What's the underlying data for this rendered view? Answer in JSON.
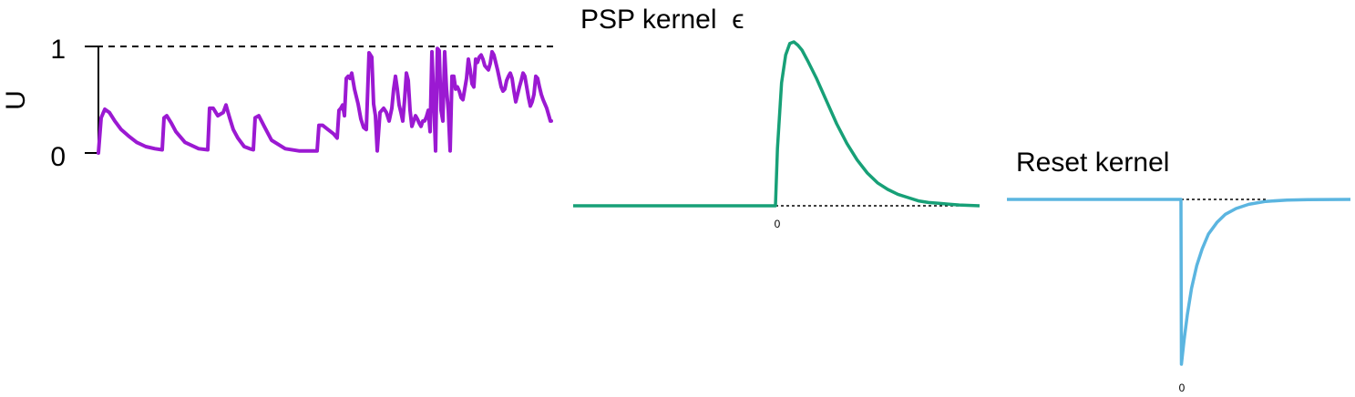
{
  "chart_data": [
    {
      "type": "line",
      "title": "",
      "xlabel": "",
      "ylabel": "U",
      "ylim": [
        0,
        1
      ],
      "yticks": [
        "0",
        "1"
      ],
      "threshold": 1,
      "threshold_style": "dashed",
      "colors": {
        "series": "#9B19D2",
        "axis": "#000000"
      },
      "series": [
        {
          "x": [
            0,
            3,
            7,
            12,
            18,
            25,
            33,
            42,
            52,
            62,
            70,
            72,
            75,
            80,
            85,
            95,
            110,
            120,
            122,
            126,
            131,
            137,
            140,
            141,
            144,
            148,
            153,
            160,
            166,
            170,
            172,
            176,
            182,
            190,
            205,
            220,
            240,
            242,
            246,
            252,
            258,
            262,
            264,
            266,
            268,
            270,
            272,
            274,
            276,
            278,
            281,
            285,
            288,
            291,
            294,
            297,
            300,
            302,
            304,
            306,
            309,
            313,
            316,
            319,
            322,
            324,
            326,
            328,
            330,
            332,
            334,
            336,
            338,
            340,
            342,
            344,
            346,
            348,
            350,
            352,
            354,
            356,
            358,
            360,
            362,
            364,
            366,
            368,
            370,
            372,
            374,
            376,
            378,
            380,
            382,
            384,
            386,
            388,
            390,
            392,
            394,
            396,
            398,
            400,
            402,
            404,
            406,
            408,
            410,
            412,
            414,
            416,
            418,
            420,
            422,
            424,
            426,
            428,
            430,
            432,
            434,
            436,
            438,
            440,
            442,
            444,
            446,
            448,
            450,
            452,
            454,
            456,
            458,
            460,
            462,
            464,
            466,
            468,
            470,
            472,
            474,
            476,
            478,
            480,
            482,
            484,
            486,
            488,
            490,
            492,
            494,
            496,
            497
          ],
          "y": [
            0,
            0.33,
            0.41,
            0.38,
            0.3,
            0.22,
            0.16,
            0.1,
            0.06,
            0.04,
            0.03,
            0.33,
            0.35,
            0.28,
            0.2,
            0.1,
            0.04,
            0.03,
            0.42,
            0.42,
            0.35,
            0.38,
            0.45,
            0.42,
            0.33,
            0.22,
            0.14,
            0.06,
            0.04,
            0.03,
            0.33,
            0.35,
            0.25,
            0.12,
            0.04,
            0.02,
            0.02,
            0.26,
            0.26,
            0.22,
            0.18,
            0.14,
            0.4,
            0.42,
            0.45,
            0.35,
            0.7,
            0.72,
            0.7,
            0.75,
            0.6,
            0.46,
            0.32,
            0.24,
            0.22,
            0.94,
            0.9,
            0.46,
            0.35,
            0.02,
            0.38,
            0.42,
            0.38,
            0.3,
            0.42,
            0.6,
            0.72,
            0.6,
            0.45,
            0.38,
            0.3,
            0.5,
            0.75,
            0.68,
            0.4,
            0.25,
            0.3,
            0.35,
            0.32,
            0.28,
            0.25,
            0.3,
            0.3,
            0.34,
            0.4,
            0.2,
            0.95,
            0.5,
            0.02,
            0.98,
            0.96,
            0.4,
            0.3,
            0.95,
            0.6,
            0.4,
            0.02,
            0.72,
            0.72,
            0.6,
            0.62,
            0.58,
            0.52,
            0.5,
            0.6,
            0.7,
            0.88,
            0.78,
            0.65,
            0.62,
            0.88,
            0.85,
            0.9,
            0.92,
            0.88,
            0.82,
            0.8,
            0.78,
            0.84,
            0.95,
            0.92,
            0.85,
            0.78,
            0.7,
            0.62,
            0.58,
            0.6,
            0.68,
            0.72,
            0.75,
            0.7,
            0.58,
            0.48,
            0.55,
            0.62,
            0.68,
            0.75,
            0.72,
            0.62,
            0.52,
            0.44,
            0.48,
            0.55,
            0.72,
            0.7,
            0.62,
            0.55,
            0.5,
            0.46,
            0.42,
            0.36,
            0.3,
            0.3
          ]
        }
      ]
    },
    {
      "type": "line",
      "title": "PSP kernel  ϵ",
      "xlabel": "",
      "ylabel": "",
      "xticks": [
        "0"
      ],
      "xlim": [
        -10,
        10
      ],
      "ylim": [
        0,
        1
      ],
      "baseline_style": "dotted",
      "colors": {
        "series": "#17A077",
        "baseline": "#000000"
      },
      "series": [
        {
          "x": [
            -10,
            0,
            0.1,
            0.3,
            0.5,
            0.7,
            0.9,
            1.1,
            1.3,
            1.6,
            2.0,
            2.5,
            3.0,
            3.5,
            4.0,
            4.5,
            5.0,
            5.5,
            6.0,
            6.5,
            7.0,
            7.5,
            8.0,
            8.5,
            9.0,
            10
          ],
          "y": [
            0,
            0,
            0.35,
            0.75,
            0.92,
            0.99,
            1.0,
            0.98,
            0.95,
            0.88,
            0.78,
            0.64,
            0.5,
            0.38,
            0.28,
            0.2,
            0.14,
            0.1,
            0.07,
            0.05,
            0.03,
            0.02,
            0.015,
            0.01,
            0.005,
            0
          ]
        }
      ]
    },
    {
      "type": "line",
      "title": "Reset kernel",
      "xlabel": "",
      "ylabel": "",
      "xticks": [
        "0"
      ],
      "xlim": [
        -8,
        8
      ],
      "ylim": [
        -1,
        0
      ],
      "baseline_style": "dotted",
      "colors": {
        "series": "#5BB5E0",
        "baseline": "#000000"
      },
      "series": [
        {
          "x": [
            -8,
            0,
            0.02,
            0.15,
            0.3,
            0.5,
            0.75,
            1.0,
            1.3,
            1.7,
            2.1,
            2.6,
            3.2,
            4.0,
            5.0,
            6.0,
            8
          ],
          "y": [
            0,
            0,
            -1.0,
            -0.85,
            -0.7,
            -0.54,
            -0.4,
            -0.3,
            -0.21,
            -0.14,
            -0.09,
            -0.055,
            -0.03,
            -0.012,
            -0.004,
            -0.001,
            0
          ]
        }
      ]
    }
  ]
}
